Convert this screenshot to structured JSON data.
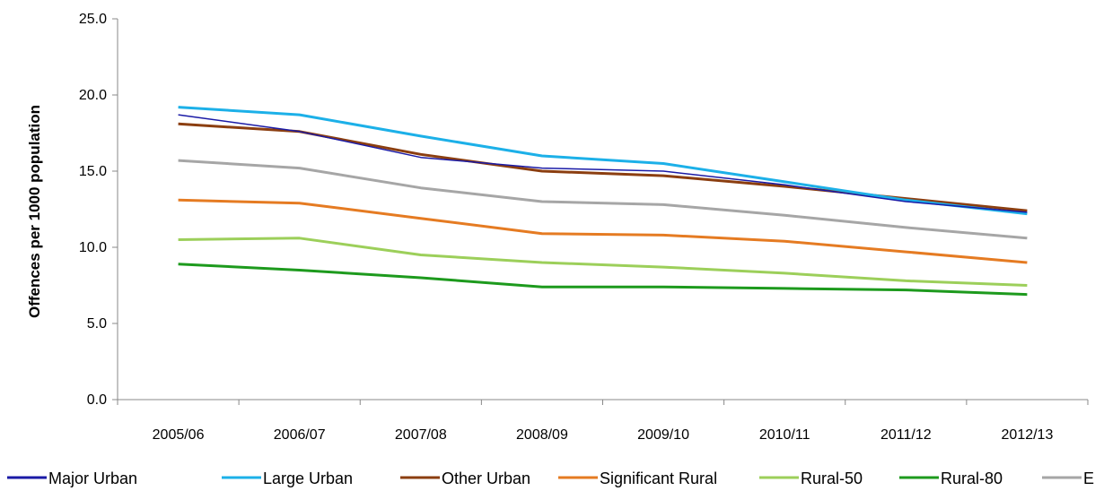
{
  "chart_data": {
    "type": "line",
    "title": "",
    "xlabel": "",
    "ylabel": "Offences per 1000 population",
    "ylim": [
      0,
      25
    ],
    "yticks": [
      "0.0",
      "5.0",
      "10.0",
      "15.0",
      "20.0",
      "25.0"
    ],
    "categories": [
      "2005/06",
      "2006/07",
      "2007/08",
      "2008/09",
      "2009/10",
      "2010/11",
      "2011/12",
      "2012/13"
    ],
    "grid": false,
    "legend": "bottom",
    "series": [
      {
        "name": "Major Urban",
        "color": "#1a1aa6",
        "width": 1.5,
        "values": [
          18.7,
          17.6,
          15.9,
          15.2,
          15.0,
          14.1,
          13.0,
          12.3
        ]
      },
      {
        "name": "Large Urban",
        "color": "#1cb0e8",
        "width": 3,
        "values": [
          19.2,
          18.7,
          17.3,
          16.0,
          15.5,
          14.3,
          13.1,
          12.2
        ]
      },
      {
        "name": "Other Urban",
        "color": "#8b3e10",
        "width": 3,
        "values": [
          18.1,
          17.6,
          16.1,
          15.0,
          14.7,
          14.0,
          13.2,
          12.4
        ]
      },
      {
        "name": "Significant Rural",
        "color": "#e57b22",
        "width": 3,
        "values": [
          13.1,
          12.9,
          11.9,
          10.9,
          10.8,
          10.4,
          9.7,
          9.0
        ]
      },
      {
        "name": "Rural-50",
        "color": "#9ccf5a",
        "width": 3,
        "values": [
          10.5,
          10.6,
          9.5,
          9.0,
          8.7,
          8.3,
          7.8,
          7.5
        ]
      },
      {
        "name": "Rural-80",
        "color": "#1d9a1d",
        "width": 3,
        "values": [
          8.9,
          8.5,
          8.0,
          7.4,
          7.4,
          7.3,
          7.2,
          6.9
        ]
      },
      {
        "name": "England",
        "color": "#a6a6a6",
        "width": 3,
        "values": [
          15.7,
          15.2,
          13.9,
          13.0,
          12.8,
          12.1,
          11.3,
          10.6
        ]
      }
    ]
  }
}
